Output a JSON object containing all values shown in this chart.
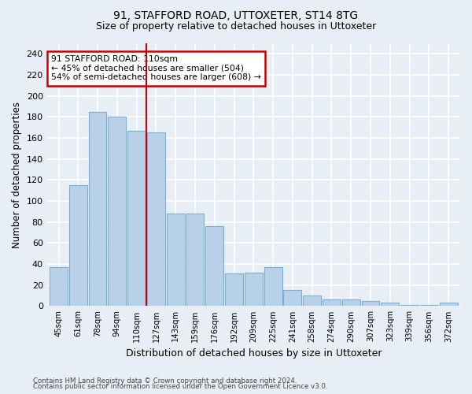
{
  "title1": "91, STAFFORD ROAD, UTTOXETER, ST14 8TG",
  "title2": "Size of property relative to detached houses in Uttoxeter",
  "xlabel": "Distribution of detached houses by size in Uttoxeter",
  "ylabel": "Number of detached properties",
  "categories": [
    "45sqm",
    "61sqm",
    "78sqm",
    "94sqm",
    "110sqm",
    "127sqm",
    "143sqm",
    "159sqm",
    "176sqm",
    "192sqm",
    "209sqm",
    "225sqm",
    "241sqm",
    "258sqm",
    "274sqm",
    "290sqm",
    "307sqm",
    "323sqm",
    "339sqm",
    "356sqm",
    "372sqm"
  ],
  "values": [
    37,
    115,
    185,
    180,
    167,
    165,
    88,
    88,
    76,
    31,
    32,
    37,
    15,
    10,
    6,
    6,
    5,
    3,
    1,
    1,
    3
  ],
  "bar_color": "#b8d0e8",
  "bar_edge_color": "#7aaed4",
  "highlight_index": 4,
  "highlight_line_color": "#cc0000",
  "annotation_text": "91 STAFFORD ROAD: 110sqm\n← 45% of detached houses are smaller (504)\n54% of semi-detached houses are larger (608) →",
  "annotation_box_color": "#ffffff",
  "annotation_box_edge_color": "#cc0000",
  "ylim": [
    0,
    250
  ],
  "yticks": [
    0,
    20,
    40,
    60,
    80,
    100,
    120,
    140,
    160,
    180,
    200,
    220,
    240
  ],
  "footer1": "Contains HM Land Registry data © Crown copyright and database right 2024.",
  "footer2": "Contains public sector information licensed under the Open Government Licence v3.0.",
  "bg_color": "#e8eef5",
  "grid_color": "#ffffff"
}
